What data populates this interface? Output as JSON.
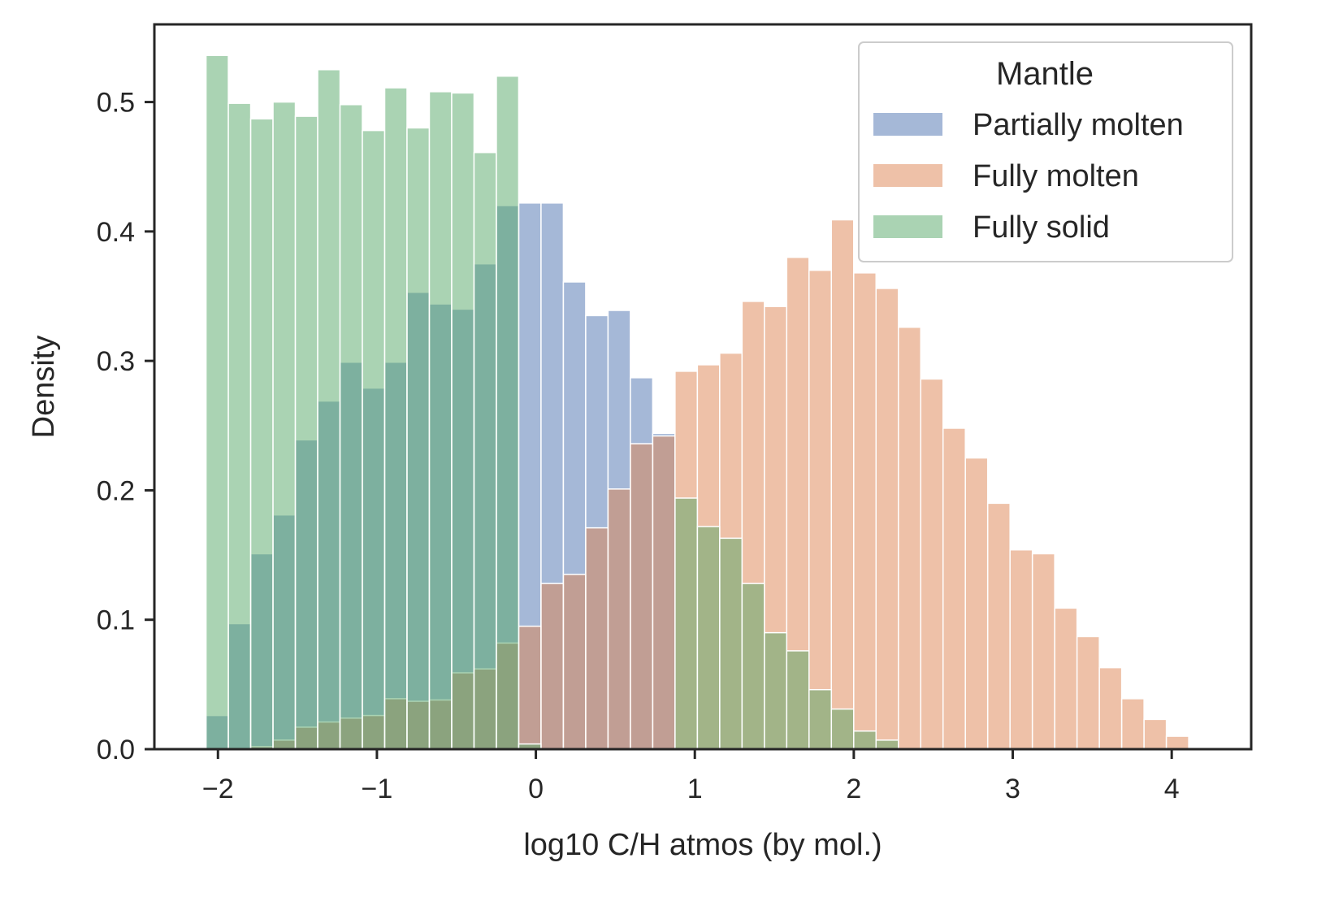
{
  "chart_data": {
    "type": "histogram",
    "title": "",
    "xlabel": "log10 C/H atmos (by mol.)",
    "ylabel": "Density",
    "xlim": [
      -2.4,
      4.5
    ],
    "ylim": [
      0,
      0.56
    ],
    "xticks": [
      -2,
      -1,
      0,
      1,
      2,
      3,
      4
    ],
    "xtick_labels": [
      "−2",
      "−1",
      "0",
      "1",
      "2",
      "3",
      "4"
    ],
    "yticks": [
      0,
      0.1,
      0.2,
      0.3,
      0.4,
      0.5
    ],
    "ytick_labels": [
      "0.0",
      "0.1",
      "0.2",
      "0.3",
      "0.4",
      "0.5"
    ],
    "grid": false,
    "legend": {
      "title": "Mantle",
      "position": "top-right"
    },
    "bin_start": -2.075,
    "bin_width": 0.1405,
    "series": [
      {
        "name": "Partially molten",
        "color": "#4c72b0",
        "opacity": 0.5,
        "values": [
          0.026,
          0.097,
          0.151,
          0.181,
          0.239,
          0.269,
          0.299,
          0.279,
          0.299,
          0.353,
          0.344,
          0.34,
          0.375,
          0.42,
          0.422,
          0.422,
          0.361,
          0.335,
          0.339,
          0.287,
          0.244
        ]
      },
      {
        "name": "Fully molten",
        "color": "#dd8452",
        "opacity": 0.5,
        "values": [
          0,
          0,
          0.002,
          0.007,
          0.017,
          0.021,
          0.024,
          0.026,
          0.039,
          0.037,
          0.038,
          0.059,
          0.062,
          0.082,
          0.095,
          0.128,
          0.135,
          0.171,
          0.201,
          0.236,
          0.242,
          0.292,
          0.297,
          0.306,
          0.346,
          0.342,
          0.38,
          0.37,
          0.409,
          0.368,
          0.356,
          0.326,
          0.286,
          0.248,
          0.225,
          0.19,
          0.154,
          0.151,
          0.109,
          0.087,
          0.063,
          0.039,
          0.023,
          0.01
        ]
      },
      {
        "name": "Fully solid",
        "color": "#55a868",
        "opacity": 0.5,
        "values": [
          0.536,
          0.499,
          0.487,
          0.5,
          0.489,
          0.525,
          0.498,
          0.478,
          0.511,
          0.48,
          0.508,
          0.507,
          0.461,
          0.52,
          0.004,
          0,
          0,
          0,
          0,
          0,
          0,
          0.194,
          0.172,
          0.163,
          0.128,
          0.09,
          0.076,
          0.046,
          0.031,
          0.014,
          0.007
        ]
      }
    ]
  }
}
